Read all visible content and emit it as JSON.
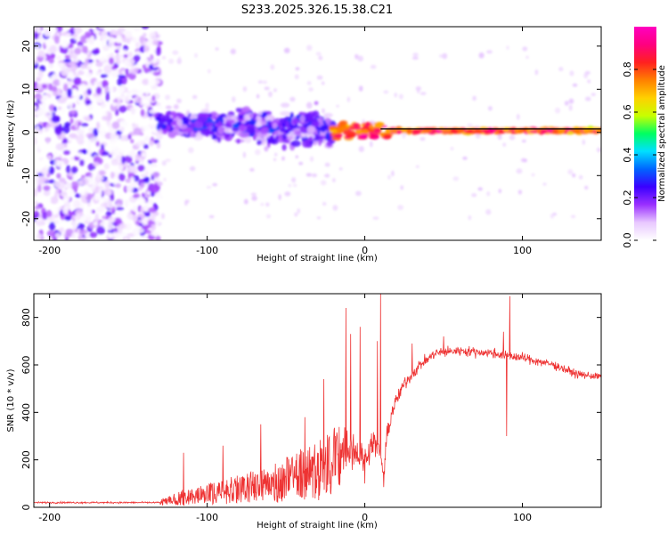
{
  "title": "S233.2025.326.15.38.C21",
  "chart_data": [
    {
      "type": "heatmap",
      "xlabel": "Height of straight line (km)",
      "ylabel": "Frequency (Hz)",
      "xlim": [
        -210,
        150
      ],
      "ylim": [
        -25,
        24.5
      ],
      "xticks": [
        -200,
        -100,
        0,
        100
      ],
      "yticks": [
        -20,
        -10,
        0,
        10,
        20
      ],
      "colorbar": {
        "label": "Normalized spectral amplitude",
        "range": [
          0,
          1
        ],
        "ticks": [
          0,
          0.2,
          0.4,
          0.6,
          0.8
        ],
        "colormap": [
          "#ffffff",
          "#e8c8ff",
          "#9a30ff",
          "#3a00ff",
          "#0064ff",
          "#00e0ff",
          "#00ff60",
          "#c8ff00",
          "#ffd000",
          "#ff8000",
          "#ff2020",
          "#ff0080",
          "#ff00c0"
        ]
      },
      "regions": [
        {
          "name": "noise-scatter",
          "x_range": [
            -210,
            -130
          ],
          "f_range": [
            -25,
            24.5
          ],
          "amplitude_range": [
            0.0,
            0.25
          ]
        },
        {
          "name": "broad-band",
          "x_range": [
            -130,
            -20
          ],
          "f_range": [
            -12,
            12
          ],
          "amplitude_range": [
            0.05,
            0.3
          ]
        },
        {
          "name": "narrow-band",
          "x_range": [
            -20,
            150
          ],
          "f_range": [
            -1,
            2
          ],
          "amplitude_range": [
            0.3,
            1.0
          ]
        }
      ],
      "band_line": {
        "x": [
          10,
          150
        ],
        "f": 0.8
      }
    },
    {
      "type": "line",
      "xlabel": "Height of straight line (km)",
      "ylabel": "SNR (10 * v/v)",
      "xlim": [
        -210,
        150
      ],
      "ylim": [
        0,
        900
      ],
      "xticks": [
        -200,
        -100,
        0,
        100
      ],
      "yticks": [
        0,
        200,
        400,
        600,
        800
      ],
      "color": "#ee3333",
      "baseline": [
        {
          "x": -210,
          "y": 20
        },
        {
          "x": -130,
          "y": 20
        },
        {
          "x": -120,
          "y": 40
        },
        {
          "x": -100,
          "y": 60
        },
        {
          "x": -80,
          "y": 85
        },
        {
          "x": -60,
          "y": 110
        },
        {
          "x": -40,
          "y": 150
        },
        {
          "x": -25,
          "y": 190
        },
        {
          "x": -15,
          "y": 230
        },
        {
          "x": -8,
          "y": 260
        },
        {
          "x": -4,
          "y": 220
        },
        {
          "x": 0,
          "y": 200
        },
        {
          "x": 5,
          "y": 280
        },
        {
          "x": 10,
          "y": 230
        },
        {
          "x": 12,
          "y": 120
        },
        {
          "x": 14,
          "y": 300
        },
        {
          "x": 18,
          "y": 420
        },
        {
          "x": 25,
          "y": 520
        },
        {
          "x": 35,
          "y": 600
        },
        {
          "x": 45,
          "y": 650
        },
        {
          "x": 60,
          "y": 660
        },
        {
          "x": 80,
          "y": 650
        },
        {
          "x": 100,
          "y": 630
        },
        {
          "x": 120,
          "y": 600
        },
        {
          "x": 135,
          "y": 560
        },
        {
          "x": 150,
          "y": 550
        }
      ],
      "noise_envelope": [
        {
          "x": -210,
          "amp": 6
        },
        {
          "x": -130,
          "amp": 6
        },
        {
          "x": -120,
          "amp": 40
        },
        {
          "x": -80,
          "amp": 60
        },
        {
          "x": -40,
          "amp": 110
        },
        {
          "x": -10,
          "amp": 170
        },
        {
          "x": 0,
          "amp": 100
        },
        {
          "x": 15,
          "amp": 60
        },
        {
          "x": 40,
          "amp": 35
        },
        {
          "x": 100,
          "amp": 35
        },
        {
          "x": 150,
          "amp": 25
        }
      ],
      "spikes": [
        {
          "x": -115,
          "y": 230
        },
        {
          "x": -90,
          "y": 260
        },
        {
          "x": -66,
          "y": 350
        },
        {
          "x": -38,
          "y": 380
        },
        {
          "x": -26,
          "y": 540
        },
        {
          "x": -12,
          "y": 840
        },
        {
          "x": -9,
          "y": 730
        },
        {
          "x": -3,
          "y": 760
        },
        {
          "x": 0,
          "y": 100
        },
        {
          "x": 8,
          "y": 700
        },
        {
          "x": 10,
          "y": 900
        },
        {
          "x": 12,
          "y": 85
        },
        {
          "x": 30,
          "y": 690
        },
        {
          "x": 50,
          "y": 720
        },
        {
          "x": 88,
          "y": 740
        },
        {
          "x": 90,
          "y": 300
        },
        {
          "x": 92,
          "y": 890
        }
      ]
    }
  ]
}
